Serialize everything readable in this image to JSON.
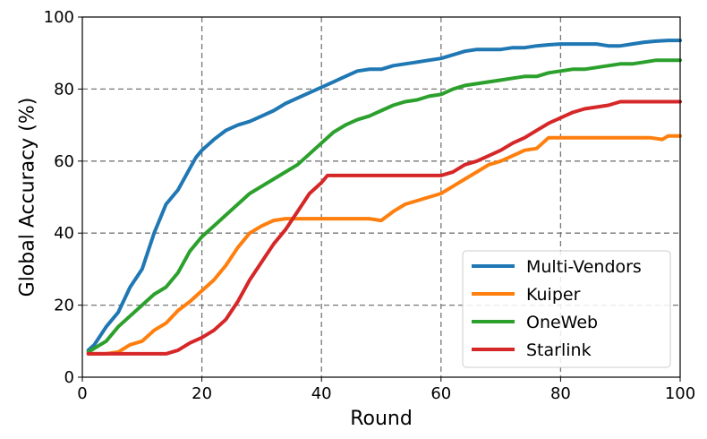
{
  "chart_data": {
    "type": "line",
    "title": "",
    "xlabel": "Round",
    "ylabel": "Global Accuracy (%)",
    "xlim": [
      0,
      100
    ],
    "ylim": [
      0,
      100
    ],
    "xticks": [
      0,
      20,
      40,
      60,
      80,
      100
    ],
    "yticks": [
      0,
      20,
      40,
      60,
      80,
      100
    ],
    "xtick_labels": [
      "0",
      "20",
      "40",
      "60",
      "80",
      "100"
    ],
    "ytick_labels": [
      "0",
      "20",
      "40",
      "60",
      "80",
      "100"
    ],
    "grid": true,
    "grid_style": "dashed",
    "legend_position": "lower-right",
    "series": [
      {
        "name": "Multi-Vendors",
        "color": "#1f77b4",
        "x": [
          1,
          2,
          4,
          6,
          8,
          10,
          12,
          14,
          16,
          18,
          19,
          20,
          22,
          24,
          26,
          28,
          30,
          32,
          34,
          36,
          38,
          40,
          42,
          44,
          46,
          48,
          50,
          52,
          54,
          56,
          58,
          60,
          62,
          64,
          66,
          68,
          70,
          72,
          74,
          76,
          78,
          80,
          82,
          84,
          86,
          88,
          90,
          92,
          94,
          96,
          98,
          100
        ],
        "y": [
          7.5,
          9,
          14,
          18,
          25,
          30,
          40,
          48,
          52,
          58,
          61,
          63,
          66,
          68.5,
          70,
          71,
          72.5,
          74,
          76,
          77.5,
          79,
          80.5,
          82,
          83.5,
          85,
          85.5,
          85.5,
          86.5,
          87,
          87.5,
          88,
          88.5,
          89.5,
          90.5,
          91,
          91,
          91,
          91.5,
          91.5,
          92,
          92.3,
          92.5,
          92.5,
          92.5,
          92.5,
          92,
          92,
          92.5,
          93,
          93.3,
          93.5,
          93.5
        ]
      },
      {
        "name": "Kuiper",
        "color": "#ff7f0e",
        "x": [
          1,
          4,
          6,
          8,
          10,
          12,
          14,
          16,
          18,
          20,
          22,
          24,
          26,
          28,
          30,
          32,
          34,
          40,
          45,
          48,
          50,
          52,
          54,
          56,
          58,
          60,
          62,
          64,
          66,
          68,
          70,
          72,
          74,
          76,
          78,
          80,
          85,
          90,
          95,
          97,
          98,
          100
        ],
        "y": [
          6.5,
          6.5,
          7,
          9,
          10,
          13,
          15,
          18.5,
          21,
          24,
          27,
          31,
          36,
          40,
          42,
          43.5,
          44,
          44,
          44,
          44,
          43.5,
          46,
          48,
          49,
          50,
          51,
          53,
          55,
          57,
          59,
          60,
          61.5,
          63,
          63.5,
          66.5,
          66.5,
          66.5,
          66.5,
          66.5,
          66,
          67,
          67
        ]
      },
      {
        "name": "OneWeb",
        "color": "#2ca02c",
        "x": [
          1,
          2,
          4,
          6,
          8,
          10,
          12,
          14,
          16,
          18,
          20,
          22,
          24,
          26,
          28,
          30,
          32,
          34,
          36,
          38,
          40,
          42,
          44,
          46,
          48,
          50,
          52,
          54,
          56,
          58,
          60,
          62,
          64,
          66,
          68,
          70,
          72,
          74,
          76,
          78,
          80,
          82,
          84,
          86,
          88,
          90,
          92,
          94,
          96,
          98,
          100
        ],
        "y": [
          7,
          8,
          10,
          14,
          17,
          20,
          23,
          25,
          29,
          35,
          39,
          42,
          45,
          48,
          51,
          53,
          55,
          57,
          59,
          62,
          65,
          68,
          70,
          71.5,
          72.5,
          74,
          75.5,
          76.5,
          77,
          78,
          78.5,
          80,
          81,
          81.5,
          82,
          82.5,
          83,
          83.5,
          83.5,
          84.5,
          85,
          85.5,
          85.5,
          86,
          86.5,
          87,
          87,
          87.5,
          88,
          88,
          88
        ]
      },
      {
        "name": "Starlink",
        "color": "#d62728",
        "x": [
          1,
          14,
          16,
          18,
          20,
          22,
          24,
          26,
          28,
          30,
          32,
          34,
          36,
          38,
          40,
          41,
          45,
          50,
          55,
          58,
          60,
          62,
          64,
          66,
          68,
          70,
          72,
          74,
          76,
          78,
          80,
          82,
          84,
          86,
          88,
          90,
          95,
          100
        ],
        "y": [
          6.5,
          6.5,
          7.5,
          9.5,
          11,
          13,
          16,
          21,
          27,
          32,
          37,
          41,
          46,
          51,
          54,
          56,
          56,
          56,
          56,
          56,
          56,
          57,
          59,
          60,
          61.5,
          63,
          65,
          66.5,
          68.5,
          70.5,
          72,
          73.5,
          74.5,
          75,
          75.5,
          76.5,
          76.5,
          76.5
        ]
      }
    ]
  }
}
